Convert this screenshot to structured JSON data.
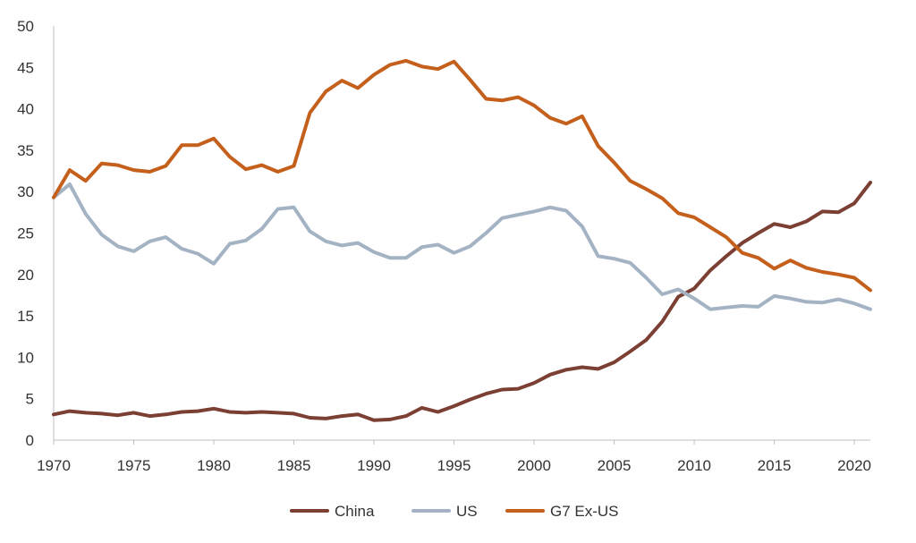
{
  "chart_data": {
    "type": "line",
    "title": "",
    "xlabel": "",
    "ylabel": "",
    "xlim": [
      1970,
      2021
    ],
    "ylim": [
      0,
      50
    ],
    "x_ticks": [
      1970,
      1975,
      1980,
      1985,
      1990,
      1995,
      2000,
      2005,
      2010,
      2015,
      2020
    ],
    "y_ticks": [
      0,
      5,
      10,
      15,
      20,
      25,
      30,
      35,
      40,
      45,
      50
    ],
    "grid": false,
    "legend_position": "bottom",
    "x": [
      1970,
      1971,
      1972,
      1973,
      1974,
      1975,
      1976,
      1977,
      1978,
      1979,
      1980,
      1981,
      1982,
      1983,
      1984,
      1985,
      1986,
      1987,
      1988,
      1989,
      1990,
      1991,
      1992,
      1993,
      1994,
      1995,
      1996,
      1997,
      1998,
      1999,
      2000,
      2001,
      2002,
      2003,
      2004,
      2005,
      2006,
      2007,
      2008,
      2009,
      2010,
      2011,
      2012,
      2013,
      2014,
      2015,
      2016,
      2017,
      2018,
      2019,
      2020,
      2021
    ],
    "series": [
      {
        "name": "China",
        "color": "#7b3f33",
        "values": [
          3.1,
          3.5,
          3.3,
          3.2,
          3.0,
          3.3,
          2.9,
          3.1,
          3.4,
          3.5,
          3.8,
          3.4,
          3.3,
          3.4,
          3.3,
          3.2,
          2.7,
          2.6,
          2.9,
          3.1,
          2.4,
          2.5,
          2.9,
          3.9,
          3.4,
          4.1,
          4.9,
          5.6,
          6.1,
          6.2,
          6.9,
          7.9,
          8.5,
          8.8,
          8.6,
          9.4,
          10.7,
          12.1,
          14.3,
          17.3,
          18.3,
          20.5,
          22.2,
          23.8,
          25.0,
          26.1,
          25.7,
          26.4,
          27.6,
          27.5,
          28.6,
          31.1
        ]
      },
      {
        "name": "US",
        "color": "#a4b3c4",
        "values": [
          29.3,
          30.9,
          27.3,
          24.8,
          23.4,
          22.8,
          24.0,
          24.5,
          23.1,
          22.5,
          21.3,
          23.7,
          24.1,
          25.5,
          27.9,
          28.1,
          25.2,
          24.0,
          23.5,
          23.8,
          22.7,
          22.0,
          22.0,
          23.3,
          23.6,
          22.6,
          23.4,
          25.0,
          26.8,
          27.2,
          27.6,
          28.1,
          27.7,
          25.8,
          22.2,
          21.9,
          21.4,
          19.6,
          17.6,
          18.2,
          17.1,
          15.8,
          16.0,
          16.2,
          16.1,
          17.4,
          17.1,
          16.7,
          16.6,
          17.0,
          16.5,
          15.8
        ]
      },
      {
        "name": "G7 Ex-US",
        "color": "#c4601c",
        "values": [
          29.3,
          32.6,
          31.3,
          33.4,
          33.2,
          32.6,
          32.4,
          33.1,
          35.6,
          35.6,
          36.4,
          34.2,
          32.7,
          33.2,
          32.4,
          33.1,
          39.5,
          42.1,
          43.4,
          42.5,
          44.1,
          45.3,
          45.8,
          45.1,
          44.8,
          45.7,
          43.5,
          41.2,
          41.0,
          41.4,
          40.4,
          38.9,
          38.2,
          39.1,
          35.5,
          33.5,
          31.3,
          30.3,
          29.2,
          27.4,
          26.9,
          25.7,
          24.5,
          22.6,
          22.0,
          20.7,
          21.7,
          20.8,
          20.3,
          20.0,
          19.6,
          18.1
        ]
      }
    ]
  }
}
